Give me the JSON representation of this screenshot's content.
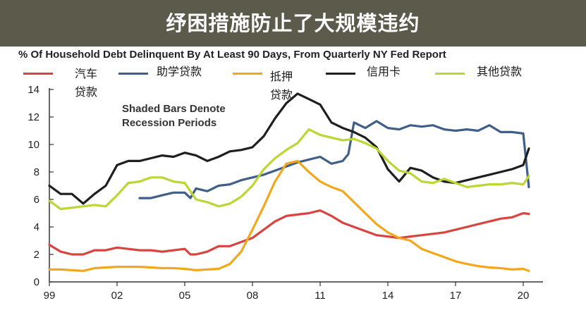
{
  "title": "纾困措施防止了大规模违约",
  "chart_data": {
    "type": "line",
    "title": "纾困措施防止了大规模违约",
    "subtitle": "% Of Household Debt Delinquent By At Least 90 Days, From Quarterly NY Fed Report",
    "annotation_line1": "Shaded Bars Denote",
    "annotation_line2": "Recession Periods",
    "xlabel": "",
    "ylabel": "",
    "xlim": [
      1999.0,
      2020.75
    ],
    "ylim": [
      0,
      14
    ],
    "x_ticks": [
      1999,
      2002,
      2005,
      2008,
      2011,
      2014,
      2017,
      2020
    ],
    "x_tick_labels": [
      "99",
      "02",
      "05",
      "08",
      "11",
      "14",
      "17",
      "20"
    ],
    "y_ticks": [
      0,
      2,
      4,
      6,
      8,
      10,
      12,
      14
    ],
    "grid": false,
    "legend_placement": "top",
    "series": [
      {
        "name": "汽车贷款",
        "color": "#d9443f",
        "x": [
          1999.0,
          1999.5,
          2000.0,
          2000.5,
          2001.0,
          2001.5,
          2002.0,
          2002.5,
          2003.0,
          2003.5,
          2004.0,
          2004.5,
          2005.0,
          2005.25,
          2005.5,
          2006.0,
          2006.5,
          2007.0,
          2007.5,
          2008.0,
          2008.5,
          2009.0,
          2009.5,
          2010.0,
          2010.5,
          2011.0,
          2011.5,
          2012.0,
          2012.5,
          2013.0,
          2013.5,
          2014.0,
          2014.5,
          2015.0,
          2015.5,
          2016.0,
          2016.5,
          2017.0,
          2017.5,
          2018.0,
          2018.5,
          2019.0,
          2019.5,
          2020.0,
          2020.25
        ],
        "values": [
          2.7,
          2.2,
          2.0,
          2.0,
          2.3,
          2.3,
          2.5,
          2.4,
          2.3,
          2.3,
          2.2,
          2.3,
          2.4,
          2.0,
          2.0,
          2.2,
          2.6,
          2.6,
          2.9,
          3.2,
          3.8,
          4.4,
          4.8,
          4.9,
          5.0,
          5.2,
          4.8,
          4.3,
          4.0,
          3.7,
          3.4,
          3.3,
          3.2,
          3.3,
          3.4,
          3.5,
          3.6,
          3.8,
          4.0,
          4.2,
          4.4,
          4.6,
          4.7,
          5.0,
          4.95
        ]
      },
      {
        "name": "助学贷款",
        "color": "#3f5f8a",
        "x": [
          2003.0,
          2003.5,
          2004.0,
          2004.5,
          2005.0,
          2005.25,
          2005.5,
          2006.0,
          2006.5,
          2007.0,
          2007.5,
          2008.0,
          2008.5,
          2009.0,
          2009.5,
          2010.0,
          2010.5,
          2011.0,
          2011.5,
          2012.0,
          2012.25,
          2012.5,
          2013.0,
          2013.5,
          2014.0,
          2014.5,
          2015.0,
          2015.5,
          2016.0,
          2016.5,
          2017.0,
          2017.5,
          2018.0,
          2018.5,
          2019.0,
          2019.5,
          2020.0,
          2020.25
        ],
        "values": [
          6.1,
          6.1,
          6.3,
          6.5,
          6.5,
          6.1,
          6.8,
          6.6,
          7.0,
          7.1,
          7.4,
          7.6,
          7.8,
          8.1,
          8.4,
          8.7,
          8.9,
          9.1,
          8.6,
          8.8,
          9.3,
          11.6,
          11.2,
          11.7,
          11.2,
          11.1,
          11.4,
          11.3,
          11.4,
          11.1,
          11.0,
          11.1,
          11.0,
          11.4,
          10.9,
          10.9,
          10.8,
          6.9
        ]
      },
      {
        "name": "抵押贷款",
        "color": "#f2a81d",
        "x": [
          1999.0,
          1999.5,
          2000.0,
          2000.5,
          2001.0,
          2001.5,
          2002.0,
          2002.5,
          2003.0,
          2003.5,
          2004.0,
          2004.5,
          2005.0,
          2005.5,
          2006.0,
          2006.5,
          2007.0,
          2007.5,
          2008.0,
          2008.5,
          2009.0,
          2009.5,
          2010.0,
          2010.5,
          2011.0,
          2011.5,
          2012.0,
          2012.5,
          2013.0,
          2013.5,
          2014.0,
          2014.5,
          2015.0,
          2015.5,
          2016.0,
          2016.5,
          2017.0,
          2017.5,
          2018.0,
          2018.5,
          2019.0,
          2019.5,
          2020.0,
          2020.25
        ],
        "values": [
          0.9,
          0.9,
          0.85,
          0.8,
          1.0,
          1.05,
          1.1,
          1.1,
          1.1,
          1.05,
          1.0,
          1.0,
          0.95,
          0.85,
          0.9,
          0.95,
          1.3,
          2.2,
          3.8,
          5.5,
          7.3,
          8.6,
          8.8,
          8.0,
          7.3,
          6.9,
          6.6,
          5.8,
          5.0,
          4.2,
          3.6,
          3.2,
          3.0,
          2.4,
          2.1,
          1.8,
          1.5,
          1.3,
          1.15,
          1.05,
          1.0,
          0.9,
          0.95,
          0.8
        ]
      },
      {
        "name": "信用卡",
        "color": "#1f1f1f",
        "x": [
          1999.0,
          1999.5,
          2000.0,
          2000.5,
          2001.0,
          2001.5,
          2002.0,
          2002.5,
          2003.0,
          2003.5,
          2004.0,
          2004.5,
          2005.0,
          2005.5,
          2006.0,
          2006.5,
          2007.0,
          2007.5,
          2008.0,
          2008.5,
          2009.0,
          2009.5,
          2010.0,
          2010.5,
          2011.0,
          2011.5,
          2012.0,
          2012.5,
          2013.0,
          2013.5,
          2014.0,
          2014.5,
          2015.0,
          2015.5,
          2016.0,
          2016.5,
          2017.0,
          2017.5,
          2018.0,
          2018.5,
          2019.0,
          2019.5,
          2020.0,
          2020.25
        ],
        "values": [
          7.0,
          6.4,
          6.4,
          5.7,
          6.4,
          7.0,
          8.5,
          8.8,
          8.8,
          9.0,
          9.2,
          9.1,
          9.4,
          9.2,
          8.8,
          9.1,
          9.5,
          9.6,
          9.8,
          10.6,
          11.9,
          13.0,
          13.7,
          13.3,
          12.9,
          11.6,
          11.2,
          10.9,
          10.5,
          9.8,
          8.2,
          7.3,
          8.3,
          8.1,
          7.6,
          7.3,
          7.2,
          7.4,
          7.6,
          7.8,
          8.0,
          8.2,
          8.5,
          9.7
        ]
      },
      {
        "name": "其他贷款",
        "color": "#bcd633",
        "x": [
          1999.0,
          1999.5,
          2000.0,
          2000.5,
          2001.0,
          2001.5,
          2002.0,
          2002.5,
          2003.0,
          2003.5,
          2004.0,
          2004.5,
          2005.0,
          2005.5,
          2006.0,
          2006.5,
          2007.0,
          2007.5,
          2008.0,
          2008.5,
          2009.0,
          2009.5,
          2010.0,
          2010.5,
          2011.0,
          2011.5,
          2012.0,
          2012.5,
          2013.0,
          2013.5,
          2014.0,
          2014.5,
          2015.0,
          2015.5,
          2016.0,
          2016.5,
          2017.0,
          2017.5,
          2018.0,
          2018.5,
          2019.0,
          2019.5,
          2020.0,
          2020.25
        ],
        "values": [
          5.9,
          5.3,
          5.4,
          5.5,
          5.6,
          5.5,
          6.3,
          7.2,
          7.3,
          7.6,
          7.6,
          7.3,
          7.2,
          6.0,
          5.8,
          5.5,
          5.7,
          6.2,
          7.0,
          8.2,
          9.0,
          9.6,
          10.1,
          11.1,
          10.7,
          10.5,
          10.3,
          10.4,
          10.1,
          9.7,
          8.8,
          8.1,
          7.9,
          7.3,
          7.2,
          7.5,
          7.2,
          6.9,
          7.0,
          7.1,
          7.1,
          7.2,
          7.1,
          7.7
        ]
      }
    ]
  }
}
